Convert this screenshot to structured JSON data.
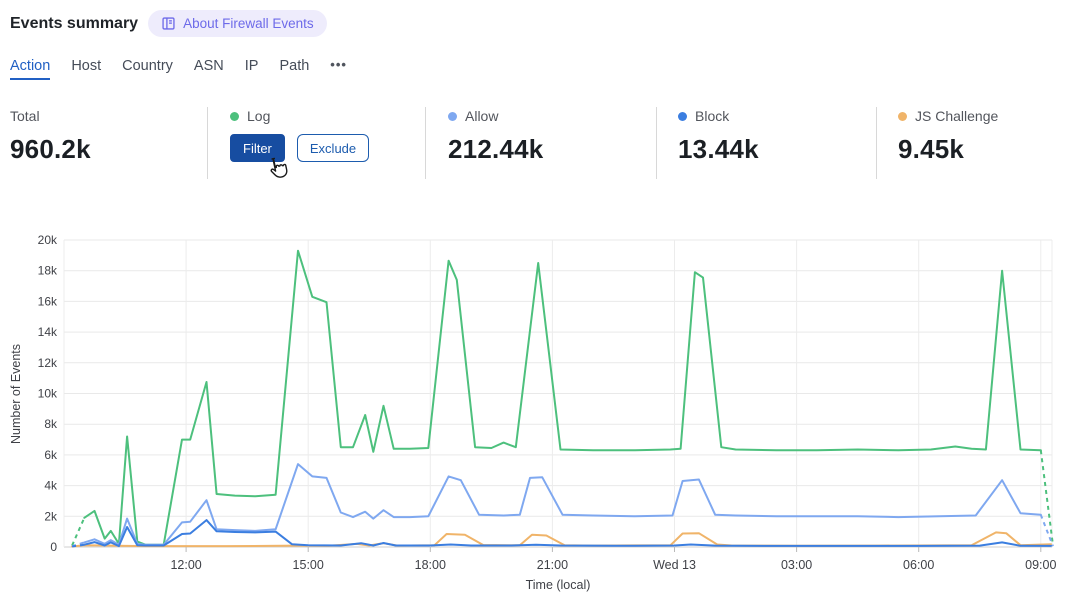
{
  "header": {
    "title": "Events summary",
    "badge": {
      "icon": "book-icon",
      "label": "About Firewall Events",
      "bg": "#eeecfc",
      "fg": "#6d6ae9"
    }
  },
  "tabs": {
    "items": [
      {
        "label": "Action",
        "active": true
      },
      {
        "label": "Host",
        "active": false
      },
      {
        "label": "Country",
        "active": false
      },
      {
        "label": "ASN",
        "active": false
      },
      {
        "label": "IP",
        "active": false
      },
      {
        "label": "Path",
        "active": false
      }
    ],
    "more_icon": "•••",
    "active_color": "#2160c4"
  },
  "stats": {
    "cells": [
      {
        "type": "total",
        "label": "Total",
        "value": "960.2k"
      },
      {
        "type": "hovered",
        "label": "Log",
        "dot_color": "#4dc07d",
        "buttons": [
          {
            "label": "Filter",
            "style": "primary"
          },
          {
            "label": "Exclude",
            "style": "secondary"
          }
        ]
      },
      {
        "type": "metric",
        "label": "Allow",
        "dot_color": "#7fa8f0",
        "value": "212.44k"
      },
      {
        "type": "metric",
        "label": "Block",
        "dot_color": "#3b7ee0",
        "value": "13.44k"
      },
      {
        "type": "metric",
        "label": "JS Challenge",
        "dot_color": "#f0b469",
        "value": "9.45k"
      }
    ]
  },
  "chart_data": {
    "type": "line",
    "title": "",
    "xlabel": "Time (local)",
    "ylabel": "Number of Events",
    "x_unit": "hours; 24 = Wed 13 00:00 local, values estimated from plot",
    "x_range": [
      9,
      33.3
    ],
    "ylim": [
      0,
      20000
    ],
    "grid": true,
    "legend_position": "none (legend shown as stat cells above)",
    "x_ticks": [
      {
        "h": 12,
        "label": "12:00"
      },
      {
        "h": 15,
        "label": "15:00"
      },
      {
        "h": 18,
        "label": "18:00"
      },
      {
        "h": 21,
        "label": "21:00"
      },
      {
        "h": 24,
        "label": "Wed 13"
      },
      {
        "h": 27,
        "label": "03:00"
      },
      {
        "h": 30,
        "label": "06:00"
      },
      {
        "h": 33,
        "label": "09:00"
      }
    ],
    "y_ticks": [
      {
        "v": 0,
        "label": "0"
      },
      {
        "v": 2000,
        "label": "2k"
      },
      {
        "v": 4000,
        "label": "4k"
      },
      {
        "v": 6000,
        "label": "6k"
      },
      {
        "v": 8000,
        "label": "8k"
      },
      {
        "v": 10000,
        "label": "10k"
      },
      {
        "v": 12000,
        "label": "12k"
      },
      {
        "v": 14000,
        "label": "14k"
      },
      {
        "v": 16000,
        "label": "16k"
      },
      {
        "v": 18000,
        "label": "18k"
      },
      {
        "v": 20000,
        "label": "20k"
      }
    ],
    "series": [
      {
        "name": "Log",
        "color": "#4dc07d",
        "dash_first": true,
        "dash_last": true,
        "points": [
          [
            9.2,
            100
          ],
          [
            9.5,
            1900
          ],
          [
            9.75,
            2350
          ],
          [
            10.0,
            550
          ],
          [
            10.15,
            1050
          ],
          [
            10.35,
            200
          ],
          [
            10.55,
            7200
          ],
          [
            10.8,
            350
          ],
          [
            11.0,
            150
          ],
          [
            11.45,
            150
          ],
          [
            11.9,
            7000
          ],
          [
            12.1,
            7000
          ],
          [
            12.5,
            10750
          ],
          [
            12.75,
            3450
          ],
          [
            13.2,
            3350
          ],
          [
            13.7,
            3300
          ],
          [
            14.2,
            3400
          ],
          [
            14.75,
            19300
          ],
          [
            15.1,
            16300
          ],
          [
            15.45,
            15950
          ],
          [
            15.8,
            6500
          ],
          [
            16.1,
            6500
          ],
          [
            16.4,
            8600
          ],
          [
            16.6,
            6200
          ],
          [
            16.85,
            9200
          ],
          [
            17.1,
            6400
          ],
          [
            17.5,
            6400
          ],
          [
            17.95,
            6450
          ],
          [
            18.45,
            18650
          ],
          [
            18.65,
            17400
          ],
          [
            19.1,
            6500
          ],
          [
            19.5,
            6450
          ],
          [
            19.8,
            6800
          ],
          [
            20.1,
            6500
          ],
          [
            20.65,
            18500
          ],
          [
            21.2,
            6350
          ],
          [
            22.0,
            6300
          ],
          [
            23.0,
            6300
          ],
          [
            23.9,
            6350
          ],
          [
            24.15,
            6400
          ],
          [
            24.5,
            17900
          ],
          [
            24.7,
            17550
          ],
          [
            25.15,
            6500
          ],
          [
            25.5,
            6350
          ],
          [
            26.5,
            6300
          ],
          [
            27.5,
            6300
          ],
          [
            28.5,
            6350
          ],
          [
            29.5,
            6300
          ],
          [
            30.3,
            6350
          ],
          [
            30.9,
            6550
          ],
          [
            31.3,
            6400
          ],
          [
            31.65,
            6350
          ],
          [
            32.05,
            18000
          ],
          [
            32.5,
            6350
          ],
          [
            33.0,
            6300
          ],
          [
            33.3,
            100
          ]
        ]
      },
      {
        "name": "JS Challenge",
        "color": "#f0b469",
        "dash_first": false,
        "dash_last": false,
        "points": [
          [
            9.2,
            30
          ],
          [
            9.5,
            120
          ],
          [
            10.0,
            100
          ],
          [
            10.5,
            70
          ],
          [
            11.0,
            60
          ],
          [
            12.0,
            60
          ],
          [
            13.0,
            60
          ],
          [
            14.0,
            70
          ],
          [
            14.75,
            90
          ],
          [
            15.5,
            80
          ],
          [
            16.2,
            200
          ],
          [
            16.5,
            100
          ],
          [
            16.85,
            250
          ],
          [
            17.2,
            90
          ],
          [
            18.1,
            110
          ],
          [
            18.4,
            850
          ],
          [
            18.85,
            800
          ],
          [
            19.3,
            130
          ],
          [
            20.2,
            110
          ],
          [
            20.5,
            800
          ],
          [
            20.85,
            750
          ],
          [
            21.3,
            120
          ],
          [
            22.0,
            90
          ],
          [
            23.9,
            110
          ],
          [
            24.2,
            880
          ],
          [
            24.6,
            900
          ],
          [
            25.05,
            160
          ],
          [
            25.4,
            100
          ],
          [
            27.0,
            80
          ],
          [
            29.0,
            90
          ],
          [
            31.3,
            110
          ],
          [
            31.9,
            950
          ],
          [
            32.15,
            900
          ],
          [
            32.5,
            120
          ],
          [
            33.25,
            180
          ]
        ]
      },
      {
        "name": "Allow",
        "color": "#7fa8f0",
        "dash_first": true,
        "dash_last": true,
        "points": [
          [
            9.2,
            50
          ],
          [
            9.5,
            300
          ],
          [
            9.75,
            500
          ],
          [
            10.0,
            200
          ],
          [
            10.15,
            450
          ],
          [
            10.35,
            150
          ],
          [
            10.55,
            1850
          ],
          [
            10.8,
            200
          ],
          [
            11.0,
            150
          ],
          [
            11.45,
            150
          ],
          [
            11.9,
            1600
          ],
          [
            12.1,
            1650
          ],
          [
            12.5,
            3050
          ],
          [
            12.75,
            1150
          ],
          [
            13.2,
            1100
          ],
          [
            13.7,
            1050
          ],
          [
            14.2,
            1150
          ],
          [
            14.75,
            5400
          ],
          [
            15.1,
            4600
          ],
          [
            15.45,
            4500
          ],
          [
            15.8,
            2250
          ],
          [
            16.1,
            1950
          ],
          [
            16.4,
            2300
          ],
          [
            16.6,
            1850
          ],
          [
            16.85,
            2400
          ],
          [
            17.1,
            1950
          ],
          [
            17.5,
            1950
          ],
          [
            17.95,
            2000
          ],
          [
            18.45,
            4600
          ],
          [
            18.75,
            4350
          ],
          [
            19.2,
            2100
          ],
          [
            19.8,
            2050
          ],
          [
            20.2,
            2100
          ],
          [
            20.45,
            4500
          ],
          [
            20.75,
            4550
          ],
          [
            21.25,
            2100
          ],
          [
            22.0,
            2050
          ],
          [
            23.0,
            2000
          ],
          [
            23.95,
            2050
          ],
          [
            24.2,
            4300
          ],
          [
            24.6,
            4400
          ],
          [
            25.0,
            2100
          ],
          [
            25.5,
            2050
          ],
          [
            26.5,
            2000
          ],
          [
            27.5,
            2000
          ],
          [
            28.5,
            2000
          ],
          [
            29.5,
            1950
          ],
          [
            30.5,
            2000
          ],
          [
            31.4,
            2050
          ],
          [
            32.05,
            4350
          ],
          [
            32.5,
            2200
          ],
          [
            33.0,
            2100
          ],
          [
            33.3,
            50
          ]
        ]
      },
      {
        "name": "Block",
        "color": "#3b7ee0",
        "dash_first": true,
        "dash_last": false,
        "points": [
          [
            9.2,
            30
          ],
          [
            9.5,
            150
          ],
          [
            9.75,
            320
          ],
          [
            10.0,
            100
          ],
          [
            10.15,
            300
          ],
          [
            10.35,
            60
          ],
          [
            10.55,
            1300
          ],
          [
            10.8,
            120
          ],
          [
            11.0,
            100
          ],
          [
            11.45,
            100
          ],
          [
            11.9,
            850
          ],
          [
            12.1,
            880
          ],
          [
            12.5,
            1750
          ],
          [
            12.75,
            1020
          ],
          [
            13.2,
            980
          ],
          [
            13.7,
            950
          ],
          [
            14.2,
            1000
          ],
          [
            14.6,
            180
          ],
          [
            15.0,
            120
          ],
          [
            15.8,
            100
          ],
          [
            16.3,
            250
          ],
          [
            16.6,
            100
          ],
          [
            16.85,
            260
          ],
          [
            17.15,
            100
          ],
          [
            18.0,
            100
          ],
          [
            18.5,
            160
          ],
          [
            19.0,
            100
          ],
          [
            20.0,
            100
          ],
          [
            20.6,
            150
          ],
          [
            21.2,
            100
          ],
          [
            22.5,
            80
          ],
          [
            24.0,
            100
          ],
          [
            24.4,
            160
          ],
          [
            25.0,
            90
          ],
          [
            26.5,
            70
          ],
          [
            28.0,
            70
          ],
          [
            30.0,
            70
          ],
          [
            31.5,
            90
          ],
          [
            32.05,
            300
          ],
          [
            32.5,
            80
          ],
          [
            33.25,
            70
          ]
        ]
      }
    ]
  }
}
